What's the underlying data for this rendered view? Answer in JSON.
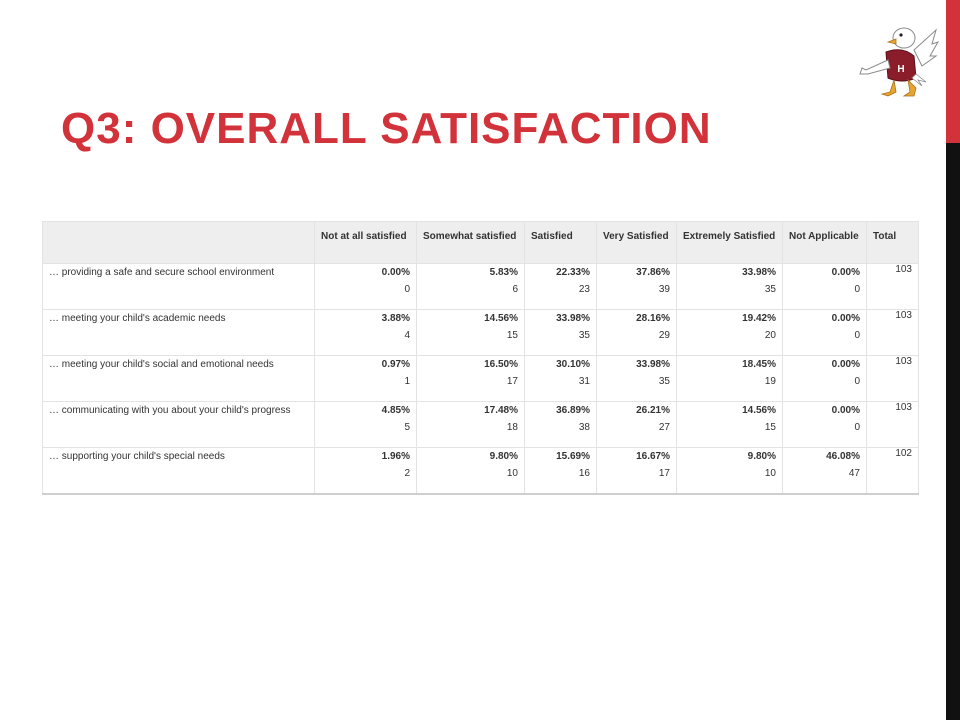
{
  "slide": {
    "title": "Q3: OVERALL SATISFACTION",
    "accent_color": "#d2323a",
    "logo_icon": "eagle-mascot-icon",
    "logo_letter": "H"
  },
  "table": {
    "headers": [
      "",
      "Not at all satisfied",
      "Somewhat satisfied",
      "Satisfied",
      "Very Satisfied",
      "Extremely Satisfied",
      "Not Applicable",
      "Total"
    ],
    "rows": [
      {
        "question": "… providing a safe and secure school environment",
        "cells": [
          {
            "pct": "0.00%",
            "n": "0"
          },
          {
            "pct": "5.83%",
            "n": "6"
          },
          {
            "pct": "22.33%",
            "n": "23"
          },
          {
            "pct": "37.86%",
            "n": "39"
          },
          {
            "pct": "33.98%",
            "n": "35"
          },
          {
            "pct": "0.00%",
            "n": "0"
          }
        ],
        "total": "103"
      },
      {
        "question": "… meeting your child's academic needs",
        "cells": [
          {
            "pct": "3.88%",
            "n": "4"
          },
          {
            "pct": "14.56%",
            "n": "15"
          },
          {
            "pct": "33.98%",
            "n": "35"
          },
          {
            "pct": "28.16%",
            "n": "29"
          },
          {
            "pct": "19.42%",
            "n": "20"
          },
          {
            "pct": "0.00%",
            "n": "0"
          }
        ],
        "total": "103"
      },
      {
        "question": "… meeting your child's social and emotional needs",
        "cells": [
          {
            "pct": "0.97%",
            "n": "1"
          },
          {
            "pct": "16.50%",
            "n": "17"
          },
          {
            "pct": "30.10%",
            "n": "31"
          },
          {
            "pct": "33.98%",
            "n": "35"
          },
          {
            "pct": "18.45%",
            "n": "19"
          },
          {
            "pct": "0.00%",
            "n": "0"
          }
        ],
        "total": "103"
      },
      {
        "question": "… communicating with you about your child's progress",
        "cells": [
          {
            "pct": "4.85%",
            "n": "5"
          },
          {
            "pct": "17.48%",
            "n": "18"
          },
          {
            "pct": "36.89%",
            "n": "38"
          },
          {
            "pct": "26.21%",
            "n": "27"
          },
          {
            "pct": "14.56%",
            "n": "15"
          },
          {
            "pct": "0.00%",
            "n": "0"
          }
        ],
        "total": "103"
      },
      {
        "question": "… supporting your child's special needs",
        "cells": [
          {
            "pct": "1.96%",
            "n": "2"
          },
          {
            "pct": "9.80%",
            "n": "10"
          },
          {
            "pct": "15.69%",
            "n": "16"
          },
          {
            "pct": "16.67%",
            "n": "17"
          },
          {
            "pct": "9.80%",
            "n": "10"
          },
          {
            "pct": "46.08%",
            "n": "47"
          }
        ],
        "total": "102"
      }
    ]
  }
}
